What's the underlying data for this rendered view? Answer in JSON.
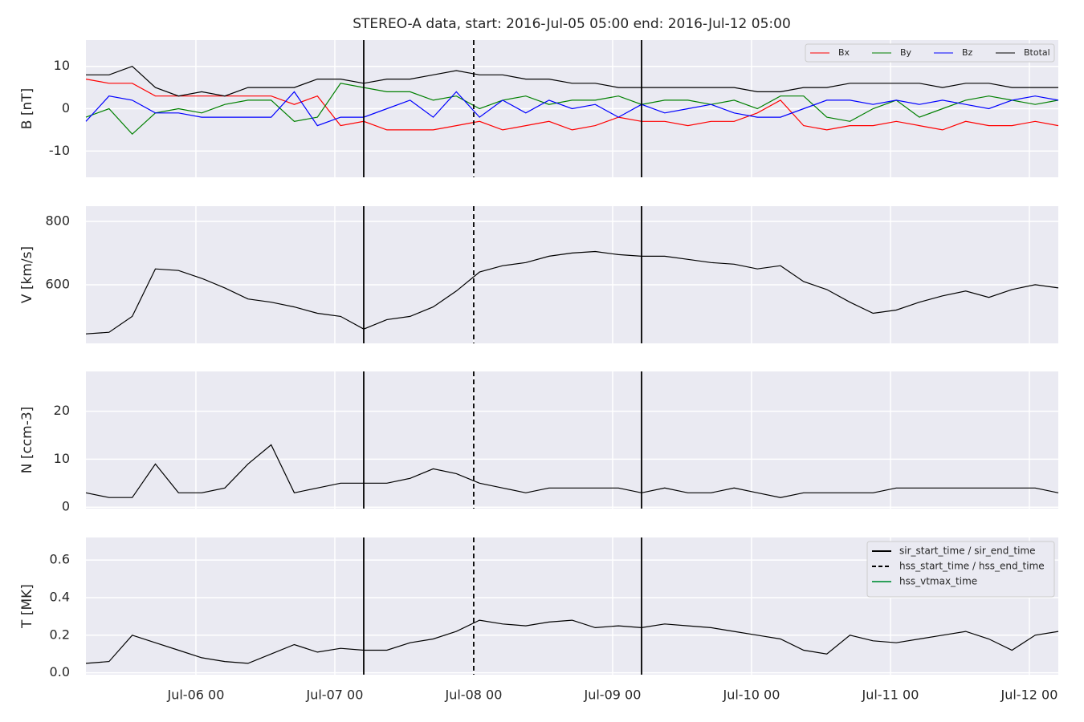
{
  "chart_data": [
    {
      "type": "line",
      "title": "STEREO-A data, start: 2016-Jul-05 05:00  end: 2016-Jul-12 05:00",
      "ylabel": "B [nT]",
      "x": [
        "2016-07-05 05:00",
        "2016-07-05 09:00",
        "2016-07-05 13:00",
        "2016-07-05 17:00",
        "2016-07-05 21:00",
        "2016-07-06 01:00",
        "2016-07-06 05:00",
        "2016-07-06 09:00",
        "2016-07-06 13:00",
        "2016-07-06 17:00",
        "2016-07-06 21:00",
        "2016-07-07 01:00",
        "2016-07-07 05:00",
        "2016-07-07 09:00",
        "2016-07-07 13:00",
        "2016-07-07 17:00",
        "2016-07-07 21:00",
        "2016-07-08 01:00",
        "2016-07-08 05:00",
        "2016-07-08 09:00",
        "2016-07-08 13:00",
        "2016-07-08 17:00",
        "2016-07-08 21:00",
        "2016-07-09 01:00",
        "2016-07-09 05:00",
        "2016-07-09 09:00",
        "2016-07-09 13:00",
        "2016-07-09 17:00",
        "2016-07-09 21:00",
        "2016-07-10 01:00",
        "2016-07-10 05:00",
        "2016-07-10 09:00",
        "2016-07-10 13:00",
        "2016-07-10 17:00",
        "2016-07-10 21:00",
        "2016-07-11 01:00",
        "2016-07-11 05:00",
        "2016-07-11 09:00",
        "2016-07-11 13:00",
        "2016-07-11 17:00",
        "2016-07-11 21:00",
        "2016-07-12 01:00",
        "2016-07-12 05:00"
      ],
      "xlim": [
        "2016-07-05 05:00",
        "2016-07-12 05:00"
      ],
      "ylim": [
        -16.2,
        16.2
      ],
      "yticks": [
        -10,
        0,
        10
      ],
      "grid": true,
      "legend": "upper right",
      "series": [
        {
          "name": "Bx",
          "color": "#ff0000",
          "values": [
            7,
            6,
            6,
            3,
            3,
            3,
            3,
            3,
            3,
            1,
            3,
            -4,
            -3,
            -5,
            -5,
            -5,
            -4,
            -3,
            -5,
            -4,
            -3,
            -5,
            -4,
            -2,
            -3,
            -3,
            -4,
            -3,
            -3,
            -1,
            2,
            -4,
            -5,
            -4,
            -4,
            -3,
            -4,
            -5,
            -3,
            -4,
            -4,
            -3,
            -4
          ]
        },
        {
          "name": "By",
          "color": "#008000",
          "values": [
            -2,
            0,
            -6,
            -1,
            0,
            -1,
            1,
            2,
            2,
            -3,
            -2,
            6,
            5,
            4,
            4,
            2,
            3,
            0,
            2,
            3,
            1,
            2,
            2,
            3,
            1,
            2,
            2,
            1,
            2,
            0,
            3,
            3,
            -2,
            -3,
            0,
            2,
            -2,
            0,
            2,
            3,
            2,
            1,
            2
          ]
        },
        {
          "name": "Bz",
          "color": "#0000ff",
          "values": [
            -3,
            3,
            2,
            -1,
            -1,
            -2,
            -2,
            -2,
            -2,
            4,
            -4,
            -2,
            -2,
            0,
            2,
            -2,
            4,
            -2,
            2,
            -1,
            2,
            0,
            1,
            -2,
            1,
            -1,
            0,
            1,
            -1,
            -2,
            -2,
            0,
            2,
            2,
            1,
            2,
            1,
            2,
            1,
            0,
            2,
            3,
            2
          ]
        },
        {
          "name": "Btotal",
          "color": "#000000",
          "values": [
            8,
            8,
            10,
            5,
            3,
            4,
            3,
            5,
            5,
            5,
            7,
            7,
            6,
            7,
            7,
            8,
            9,
            8,
            8,
            7,
            7,
            6,
            6,
            5,
            5,
            5,
            5,
            5,
            5,
            4,
            4,
            5,
            5,
            6,
            6,
            6,
            6,
            5,
            6,
            6,
            5,
            5,
            5
          ]
        }
      ]
    },
    {
      "type": "line",
      "ylabel": "V [km/s]",
      "x": [
        "2016-07-05 05:00",
        "2016-07-05 09:00",
        "2016-07-05 13:00",
        "2016-07-05 17:00",
        "2016-07-05 21:00",
        "2016-07-06 01:00",
        "2016-07-06 05:00",
        "2016-07-06 09:00",
        "2016-07-06 13:00",
        "2016-07-06 17:00",
        "2016-07-06 21:00",
        "2016-07-07 01:00",
        "2016-07-07 05:00",
        "2016-07-07 09:00",
        "2016-07-07 13:00",
        "2016-07-07 17:00",
        "2016-07-07 21:00",
        "2016-07-08 01:00",
        "2016-07-08 05:00",
        "2016-07-08 09:00",
        "2016-07-08 13:00",
        "2016-07-08 17:00",
        "2016-07-08 21:00",
        "2016-07-09 01:00",
        "2016-07-09 05:00",
        "2016-07-09 09:00",
        "2016-07-09 13:00",
        "2016-07-09 17:00",
        "2016-07-09 21:00",
        "2016-07-10 01:00",
        "2016-07-10 05:00",
        "2016-07-10 09:00",
        "2016-07-10 13:00",
        "2016-07-10 17:00",
        "2016-07-10 21:00",
        "2016-07-11 01:00",
        "2016-07-11 05:00",
        "2016-07-11 09:00",
        "2016-07-11 13:00",
        "2016-07-11 17:00",
        "2016-07-11 21:00",
        "2016-07-12 01:00",
        "2016-07-12 05:00"
      ],
      "xlim": [
        "2016-07-05 05:00",
        "2016-07-12 05:00"
      ],
      "ylim": [
        415,
        848
      ],
      "yticks": [
        600,
        800
      ],
      "grid": true,
      "series": [
        {
          "color": "#000000",
          "values": [
            445,
            450,
            500,
            650,
            645,
            620,
            590,
            555,
            545,
            530,
            510,
            500,
            460,
            490,
            500,
            530,
            580,
            640,
            660,
            670,
            690,
            700,
            705,
            695,
            690,
            690,
            680,
            670,
            665,
            650,
            660,
            610,
            585,
            545,
            510,
            520,
            545,
            565,
            580,
            560,
            585,
            600,
            590
          ]
        }
      ]
    },
    {
      "type": "line",
      "ylabel": "N [ccm-3]",
      "x": [
        "2016-07-05 05:00",
        "2016-07-05 09:00",
        "2016-07-05 13:00",
        "2016-07-05 17:00",
        "2016-07-05 21:00",
        "2016-07-06 01:00",
        "2016-07-06 05:00",
        "2016-07-06 09:00",
        "2016-07-06 13:00",
        "2016-07-06 17:00",
        "2016-07-06 21:00",
        "2016-07-07 01:00",
        "2016-07-07 05:00",
        "2016-07-07 09:00",
        "2016-07-07 13:00",
        "2016-07-07 17:00",
        "2016-07-07 21:00",
        "2016-07-08 01:00",
        "2016-07-08 05:00",
        "2016-07-08 09:00",
        "2016-07-08 13:00",
        "2016-07-08 17:00",
        "2016-07-08 21:00",
        "2016-07-09 01:00",
        "2016-07-09 05:00",
        "2016-07-09 09:00",
        "2016-07-09 13:00",
        "2016-07-09 17:00",
        "2016-07-09 21:00",
        "2016-07-10 01:00",
        "2016-07-10 05:00",
        "2016-07-10 09:00",
        "2016-07-10 13:00",
        "2016-07-10 17:00",
        "2016-07-10 21:00",
        "2016-07-11 01:00",
        "2016-07-11 05:00",
        "2016-07-11 09:00",
        "2016-07-11 13:00",
        "2016-07-11 17:00",
        "2016-07-11 21:00",
        "2016-07-12 01:00",
        "2016-07-12 05:00"
      ],
      "xlim": [
        "2016-07-05 05:00",
        "2016-07-12 05:00"
      ],
      "ylim": [
        -0.3,
        28.3
      ],
      "yticks": [
        0,
        10,
        20
      ],
      "grid": true,
      "series": [
        {
          "color": "#000000",
          "values": [
            3,
            2,
            2,
            9,
            3,
            3,
            4,
            9,
            13,
            3,
            4,
            5,
            5,
            5,
            6,
            8,
            7,
            5,
            4,
            3,
            4,
            4,
            4,
            4,
            3,
            4,
            3,
            3,
            4,
            3,
            2,
            3,
            3,
            3,
            3,
            4,
            4,
            4,
            4,
            4,
            4,
            4,
            3
          ]
        }
      ]
    },
    {
      "type": "line",
      "ylabel": "T [MK]",
      "x": [
        "2016-07-05 05:00",
        "2016-07-05 09:00",
        "2016-07-05 13:00",
        "2016-07-05 17:00",
        "2016-07-05 21:00",
        "2016-07-06 01:00",
        "2016-07-06 05:00",
        "2016-07-06 09:00",
        "2016-07-06 13:00",
        "2016-07-06 17:00",
        "2016-07-06 21:00",
        "2016-07-07 01:00",
        "2016-07-07 05:00",
        "2016-07-07 09:00",
        "2016-07-07 13:00",
        "2016-07-07 17:00",
        "2016-07-07 21:00",
        "2016-07-08 01:00",
        "2016-07-08 05:00",
        "2016-07-08 09:00",
        "2016-07-08 13:00",
        "2016-07-08 17:00",
        "2016-07-08 21:00",
        "2016-07-09 01:00",
        "2016-07-09 05:00",
        "2016-07-09 09:00",
        "2016-07-09 13:00",
        "2016-07-09 17:00",
        "2016-07-09 21:00",
        "2016-07-10 01:00",
        "2016-07-10 05:00",
        "2016-07-10 09:00",
        "2016-07-10 13:00",
        "2016-07-10 17:00",
        "2016-07-10 21:00",
        "2016-07-11 01:00",
        "2016-07-11 05:00",
        "2016-07-11 09:00",
        "2016-07-11 13:00",
        "2016-07-11 17:00",
        "2016-07-11 21:00",
        "2016-07-12 01:00",
        "2016-07-12 05:00"
      ],
      "xlim": [
        "2016-07-05 05:00",
        "2016-07-12 05:00"
      ],
      "ylim": [
        -0.01,
        0.72
      ],
      "yticks": [
        {
          "value": 0,
          "label": "0.0"
        },
        0.2,
        0.4,
        0.6
      ],
      "grid": true,
      "legend": "upper right",
      "xticks": [
        {
          "value": "2016-07-06 00:00",
          "label": "Jul-06 00"
        },
        {
          "value": "2016-07-07 00:00",
          "label": "Jul-07 00"
        },
        {
          "value": "2016-07-08 00:00",
          "label": "Jul-08 00"
        },
        {
          "value": "2016-07-09 00:00",
          "label": "Jul-09 00"
        },
        {
          "value": "2016-07-10 00:00",
          "label": "Jul-10 00"
        },
        {
          "value": "2016-07-11 00:00",
          "label": "Jul-11 00"
        },
        {
          "value": "2016-07-12 00:00",
          "label": "Jul-12 00"
        }
      ],
      "series": [
        {
          "color": "#000000",
          "values": [
            0.05,
            0.06,
            0.2,
            0.16,
            0.12,
            0.08,
            0.06,
            0.05,
            0.1,
            0.15,
            0.11,
            0.13,
            0.12,
            0.12,
            0.16,
            0.18,
            0.22,
            0.28,
            0.26,
            0.25,
            0.27,
            0.28,
            0.24,
            0.25,
            0.24,
            0.26,
            0.25,
            0.24,
            0.22,
            0.2,
            0.18,
            0.12,
            0.1,
            0.2,
            0.17,
            0.16,
            0.18,
            0.2,
            0.22,
            0.18,
            0.12,
            0.2,
            0.22
          ]
        }
      ],
      "events": [
        {
          "name": "sir_start_time / sir_end_time",
          "color": "#000000",
          "dashed": false,
          "times": [
            "2016-07-07 05:00",
            "2016-07-09 05:00"
          ]
        },
        {
          "name": "hss_start_time / hss_end_time",
          "color": "#000000",
          "dashed": true,
          "times": [
            "2016-07-08 00:00"
          ]
        },
        {
          "name": "hss_vtmax_time",
          "color": "#2ca05a",
          "dashed": false,
          "times": []
        }
      ]
    }
  ]
}
